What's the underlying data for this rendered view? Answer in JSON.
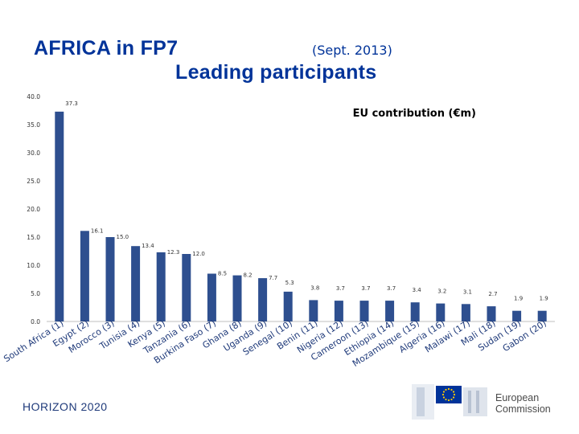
{
  "header": {
    "title": "AFRICA in FP7",
    "date": "(Sept. 2013)",
    "subtitle": "Leading participants"
  },
  "chart_data": {
    "type": "bar",
    "legend_text": "EU contribution (€m)",
    "categories": [
      "South Africa (1)",
      "Egypt (2)",
      "Morocco (3)",
      "Tunisia (4)",
      "Kenya (5)",
      "Tanzania (6)",
      "Burkina Faso (7)",
      "Ghana (8)",
      "Uganda (9)",
      "Senegal (10)",
      "Benin (11)",
      "Nigeria (12)",
      "Cameroon (13)",
      "Ethiopia (14)",
      "Mozambique (15)",
      "Algeria (16)",
      "Malawi (17)",
      "Mali (18)",
      "Sudan (19)",
      "Gabon (20)"
    ],
    "values": [
      37.3,
      16.1,
      15.0,
      13.4,
      12.3,
      12.0,
      8.5,
      8.2,
      7.7,
      5.3,
      3.8,
      3.7,
      3.7,
      3.7,
      3.4,
      3.2,
      3.1,
      2.7,
      1.9,
      1.9
    ],
    "value_labels": [
      "37.3",
      "16.1",
      "15.0",
      "13.4",
      "12.3",
      "12.0",
      "8.5",
      "8.2",
      "7.7",
      "5.3",
      "3.8",
      "3.7",
      "3.7",
      "3.7",
      "3.4",
      "3.2",
      "3.1",
      "2.7",
      "1.9",
      "1.9"
    ],
    "y_ticks": [
      "0.0",
      "5.0",
      "10.0",
      "15.0",
      "20.0",
      "25.0",
      "30.0",
      "35.0",
      "40.0"
    ],
    "ylim": [
      0,
      40
    ],
    "grid": false,
    "bar_color": "#2e4f8f"
  },
  "footer": {
    "program": "HORIZON 2020",
    "logo_line1": "European",
    "logo_line2": "Commission"
  }
}
